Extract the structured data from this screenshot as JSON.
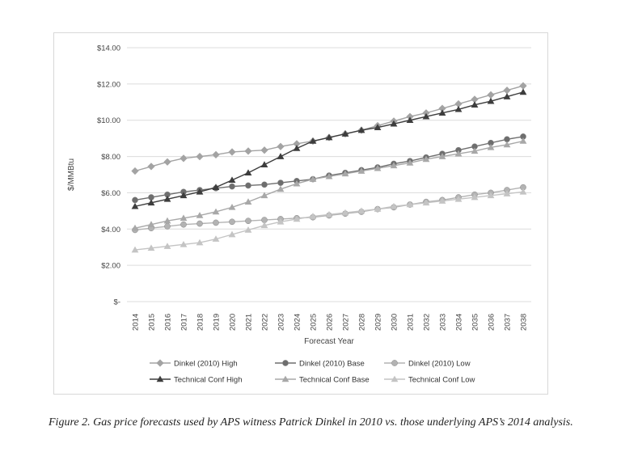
{
  "chart_data": {
    "type": "line",
    "title": "",
    "xlabel": "Forecast Year",
    "ylabel": "$/MMBtu",
    "ylim": [
      0,
      14
    ],
    "yticks": [
      {
        "value": 0,
        "label": "$-"
      },
      {
        "value": 2,
        "label": "$2.00"
      },
      {
        "value": 4,
        "label": "$4.00"
      },
      {
        "value": 6,
        "label": "$6.00"
      },
      {
        "value": 8,
        "label": "$8.00"
      },
      {
        "value": 10,
        "label": "$10.00"
      },
      {
        "value": 12,
        "label": "$12.00"
      },
      {
        "value": 14,
        "label": "$14.00"
      }
    ],
    "grid": true,
    "legend_position": "bottom",
    "x": [
      "2014",
      "2015",
      "2016",
      "2017",
      "2018",
      "2019",
      "2020",
      "2021",
      "2022",
      "2023",
      "2024",
      "2025",
      "2026",
      "2027",
      "2028",
      "2029",
      "2030",
      "2031",
      "2032",
      "2033",
      "2034",
      "2035",
      "2036",
      "2037",
      "2038"
    ],
    "series": [
      {
        "name": "Dinkel (2010) High",
        "marker": "diamond",
        "color": "#a3a3a3",
        "values": [
          7.2,
          7.45,
          7.7,
          7.9,
          8.0,
          8.1,
          8.25,
          8.3,
          8.35,
          8.55,
          8.7,
          8.85,
          9.05,
          9.25,
          9.45,
          9.7,
          9.95,
          10.2,
          10.4,
          10.65,
          10.9,
          11.15,
          11.4,
          11.65,
          11.9
        ]
      },
      {
        "name": "Dinkel (2010) Base",
        "marker": "circle",
        "color": "#6e6e6e",
        "values": [
          5.6,
          5.75,
          5.9,
          6.05,
          6.15,
          6.25,
          6.35,
          6.4,
          6.45,
          6.55,
          6.65,
          6.75,
          6.95,
          7.1,
          7.25,
          7.4,
          7.6,
          7.75,
          7.95,
          8.15,
          8.35,
          8.55,
          8.75,
          8.95,
          9.1
        ]
      },
      {
        "name": "Dinkel (2010) Low",
        "marker": "circle",
        "color": "#b3b3b3",
        "values": [
          3.95,
          4.05,
          4.15,
          4.25,
          4.3,
          4.35,
          4.4,
          4.45,
          4.5,
          4.55,
          4.6,
          4.65,
          4.75,
          4.85,
          4.95,
          5.1,
          5.2,
          5.35,
          5.5,
          5.6,
          5.75,
          5.9,
          6.0,
          6.15,
          6.3
        ]
      },
      {
        "name": "Technical Conf High",
        "marker": "triangle",
        "color": "#3d3d3d",
        "values": [
          5.25,
          5.45,
          5.65,
          5.85,
          6.05,
          6.3,
          6.7,
          7.1,
          7.55,
          8.0,
          8.45,
          8.85,
          9.05,
          9.25,
          9.45,
          9.6,
          9.8,
          10.0,
          10.2,
          10.4,
          10.6,
          10.85,
          11.05,
          11.3,
          11.55
        ]
      },
      {
        "name": "Technical Conf Base",
        "marker": "triangle",
        "color": "#a8a8a8",
        "values": [
          4.05,
          4.25,
          4.45,
          4.6,
          4.75,
          4.95,
          5.2,
          5.5,
          5.85,
          6.2,
          6.5,
          6.75,
          6.9,
          7.05,
          7.2,
          7.35,
          7.5,
          7.65,
          7.85,
          8.0,
          8.15,
          8.3,
          8.5,
          8.65,
          8.85
        ]
      },
      {
        "name": "Technical Conf Low",
        "marker": "triangle",
        "color": "#c4c4c4",
        "values": [
          2.85,
          2.95,
          3.05,
          3.15,
          3.25,
          3.45,
          3.7,
          3.95,
          4.2,
          4.4,
          4.55,
          4.7,
          4.8,
          4.9,
          5.0,
          5.1,
          5.25,
          5.35,
          5.45,
          5.55,
          5.65,
          5.75,
          5.85,
          5.95,
          6.05
        ]
      }
    ]
  },
  "caption": "Figure 2. Gas price forecasts used by APS witness Patrick Dinkel in 2010 vs. those underlying APS’s 2014 analysis."
}
